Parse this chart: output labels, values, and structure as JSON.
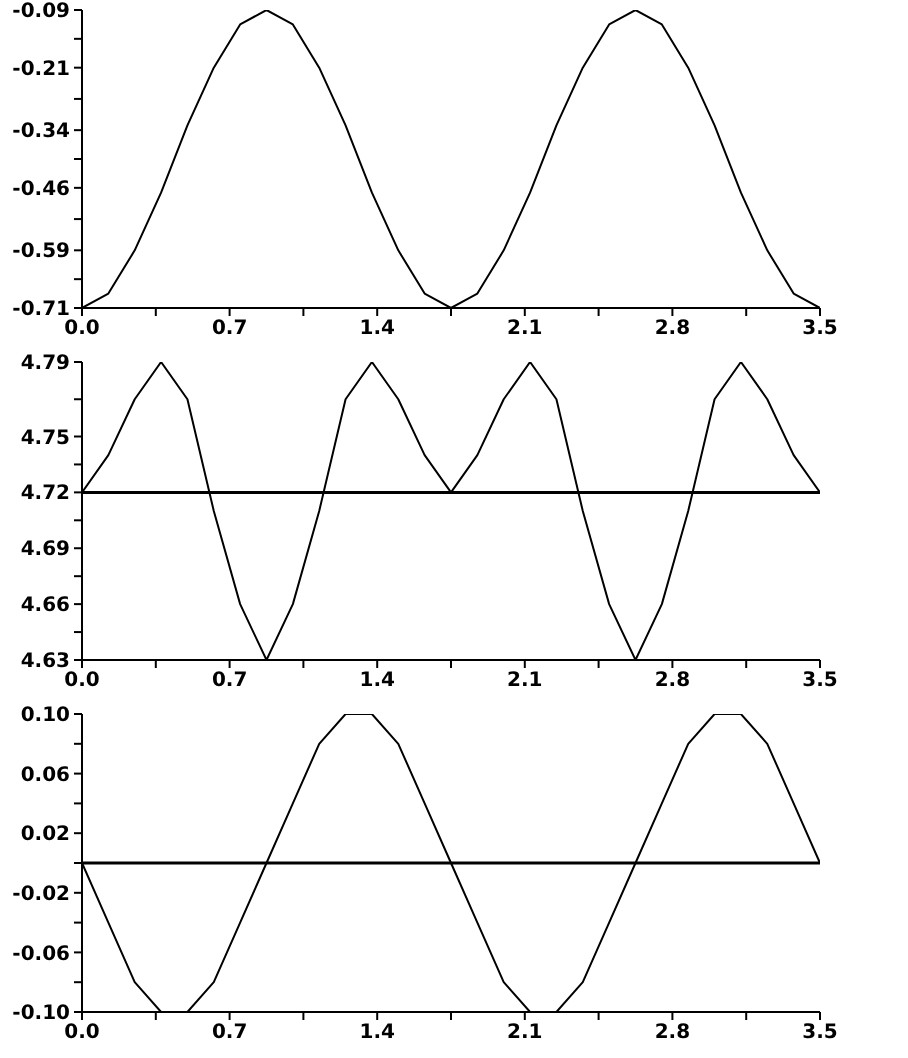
{
  "chart_data": [
    {
      "type": "line",
      "x": [
        0,
        0.125,
        0.25,
        0.375,
        0.5,
        0.625,
        0.75,
        0.875,
        1,
        1.125,
        1.25,
        1.375,
        1.5,
        1.625,
        1.75,
        1.875,
        2,
        2.125,
        2.25,
        2.375,
        2.5,
        2.625,
        2.75,
        2.875,
        3,
        3.125,
        3.25,
        3.375,
        3.5
      ],
      "series": [
        {
          "color": "#000000",
          "values": [
            -0.71,
            -0.68,
            -0.59,
            -0.47,
            -0.33,
            -0.21,
            -0.12,
            -0.09,
            -0.12,
            -0.21,
            -0.33,
            -0.47,
            -0.59,
            -0.68,
            -0.71,
            -0.68,
            -0.59,
            -0.47,
            -0.33,
            -0.21,
            -0.12,
            -0.09,
            -0.12,
            -0.21,
            -0.33,
            -0.47,
            -0.59,
            -0.68,
            -0.71
          ]
        }
      ],
      "xlim": [
        0,
        3.5
      ],
      "xticks": [
        {
          "value": 0,
          "label": "0.0"
        },
        {
          "value": 0.35,
          "label": null
        },
        0.7,
        {
          "value": 1.05,
          "label": null
        },
        1.4,
        {
          "value": 1.75,
          "label": null
        },
        2.1,
        {
          "value": 2.45,
          "label": null
        },
        2.8,
        {
          "value": 3.15,
          "label": null
        },
        3.5
      ],
      "ylim": [
        -0.71,
        -0.09
      ],
      "yticks": [
        -0.71,
        {
          "value": -0.65,
          "label": null
        },
        -0.59,
        {
          "value": -0.525,
          "label": null
        },
        -0.46,
        {
          "value": -0.4,
          "label": null
        },
        -0.34,
        {
          "value": -0.275,
          "label": null
        },
        -0.21,
        {
          "value": -0.15,
          "label": null
        },
        -0.09
      ]
    },
    {
      "type": "line",
      "x": [
        0,
        0.125,
        0.25,
        0.375,
        0.5,
        0.625,
        0.75,
        0.875,
        1,
        1.125,
        1.25,
        1.375,
        1.5,
        1.625,
        1.75,
        1.875,
        2,
        2.125,
        2.25,
        2.375,
        2.5,
        2.625,
        2.75,
        2.875,
        3,
        3.125,
        3.25,
        3.375,
        3.5
      ],
      "series": [
        {
          "color": "#000000",
          "values": [
            4.72,
            4.74,
            4.77,
            4.79,
            4.77,
            4.71,
            4.66,
            4.63,
            4.66,
            4.71,
            4.77,
            4.79,
            4.77,
            4.74,
            4.72,
            4.74,
            4.77,
            4.79,
            4.77,
            4.71,
            4.66,
            4.63,
            4.66,
            4.71,
            4.77,
            4.79,
            4.77,
            4.74,
            4.72
          ]
        }
      ],
      "xlim": [
        0,
        3.5
      ],
      "xticks": [
        {
          "value": 0,
          "label": "0.0"
        },
        {
          "value": 0.35,
          "label": null
        },
        0.7,
        {
          "value": 1.05,
          "label": null
        },
        1.4,
        {
          "value": 1.75,
          "label": null
        },
        2.1,
        {
          "value": 2.45,
          "label": null
        },
        2.8,
        {
          "value": 3.15,
          "label": null
        },
        3.5
      ],
      "ylim": [
        4.63,
        4.79
      ],
      "yticks": [
        4.63,
        {
          "value": 4.645,
          "label": null
        },
        4.66,
        {
          "value": 4.675,
          "label": null
        },
        4.69,
        {
          "value": 4.705,
          "label": null
        },
        4.72,
        {
          "value": 4.735,
          "label": null
        },
        4.75,
        {
          "value": 4.77,
          "label": null
        },
        4.79
      ],
      "ref_lines": [
        {
          "axis": "y",
          "value": 4.72,
          "color": "#000000"
        }
      ]
    },
    {
      "type": "line",
      "x": [
        0,
        0.125,
        0.25,
        0.375,
        0.5,
        0.625,
        0.75,
        0.875,
        1,
        1.125,
        1.25,
        1.375,
        1.5,
        1.625,
        1.75,
        1.875,
        2,
        2.125,
        2.25,
        2.375,
        2.5,
        2.625,
        2.75,
        2.875,
        3,
        3.125,
        3.25,
        3.375,
        3.5
      ],
      "series": [
        {
          "color": "#000000",
          "values": [
            0,
            -0.04,
            -0.08,
            -0.1,
            -0.1,
            -0.08,
            -0.04,
            0,
            0.04,
            0.08,
            0.1,
            0.1,
            0.08,
            0.04,
            0,
            -0.04,
            -0.08,
            -0.1,
            -0.1,
            -0.08,
            -0.04,
            0,
            0.04,
            0.08,
            0.1,
            0.1,
            0.08,
            0.04,
            0
          ]
        }
      ],
      "xlim": [
        0,
        3.5
      ],
      "xticks": [
        {
          "value": 0,
          "label": "0.0"
        },
        {
          "value": 0.35,
          "label": null
        },
        0.7,
        {
          "value": 1.05,
          "label": null
        },
        1.4,
        {
          "value": 1.75,
          "label": null
        },
        2.1,
        {
          "value": 2.45,
          "label": null
        },
        2.8,
        {
          "value": 3.15,
          "label": null
        },
        3.5
      ],
      "ylim": [
        -0.1,
        0.1
      ],
      "yticks": [
        {
          "value": -0.1,
          "label": "-0.10"
        },
        {
          "value": -0.08,
          "label": null
        },
        -0.06,
        {
          "value": -0.04,
          "label": null
        },
        -0.02,
        {
          "value": 0,
          "label": null
        },
        0.02,
        {
          "value": 0.04,
          "label": null
        },
        0.06,
        {
          "value": 0.08,
          "label": null
        },
        {
          "value": 0.1,
          "label": "0.10"
        }
      ],
      "ref_lines": [
        {
          "axis": "y",
          "value": 0,
          "color": "#000000"
        }
      ]
    }
  ]
}
